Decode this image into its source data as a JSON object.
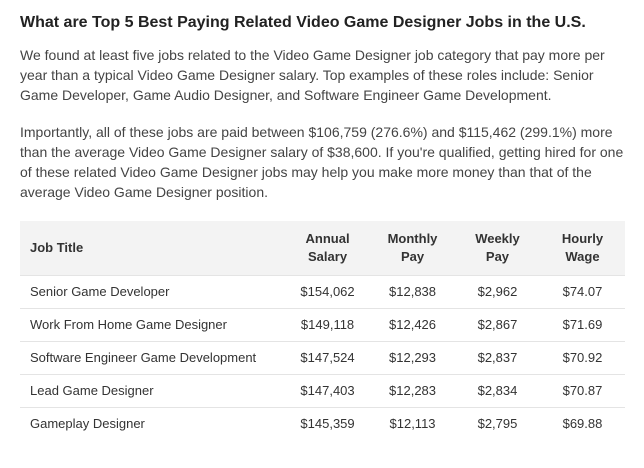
{
  "heading": "What are Top 5 Best Paying Related Video Game Designer Jobs in the U.S.",
  "paragraph1": "We found at least five jobs related to the Video Game Designer job category that pay more per year than a typical Video Game Designer salary. Top examples of these roles include: Senior Game Developer, Game Audio Designer, and Software Engineer Game Development.",
  "paragraph2": "Importantly, all of these jobs are paid between $106,759 (276.6%) and $115,462 (299.1%) more than the average Video Game Designer salary of $38,600. If you're qualified, getting hired for one of these related Video Game Designer jobs may help you make more money than that of the average Video Game Designer position.",
  "table": {
    "headers": {
      "job_title": "Job Title",
      "annual_salary": "Annual Salary",
      "monthly_pay": "Monthly Pay",
      "weekly_pay": "Weekly Pay",
      "hourly_wage": "Hourly Wage"
    },
    "rows": [
      {
        "job_title": "Senior Game Developer",
        "annual_salary": "$154,062",
        "monthly_pay": "$12,838",
        "weekly_pay": "$2,962",
        "hourly_wage": "$74.07"
      },
      {
        "job_title": "Work From Home Game Designer",
        "annual_salary": "$149,118",
        "monthly_pay": "$12,426",
        "weekly_pay": "$2,867",
        "hourly_wage": "$71.69"
      },
      {
        "job_title": "Software Engineer Game Development",
        "annual_salary": "$147,524",
        "monthly_pay": "$12,293",
        "weekly_pay": "$2,837",
        "hourly_wage": "$70.92"
      },
      {
        "job_title": "Lead Game Designer",
        "annual_salary": "$147,403",
        "monthly_pay": "$12,283",
        "weekly_pay": "$2,834",
        "hourly_wage": "$70.87"
      },
      {
        "job_title": "Gameplay Designer",
        "annual_salary": "$145,359",
        "monthly_pay": "$12,113",
        "weekly_pay": "$2,795",
        "hourly_wage": "$69.88"
      }
    ]
  }
}
